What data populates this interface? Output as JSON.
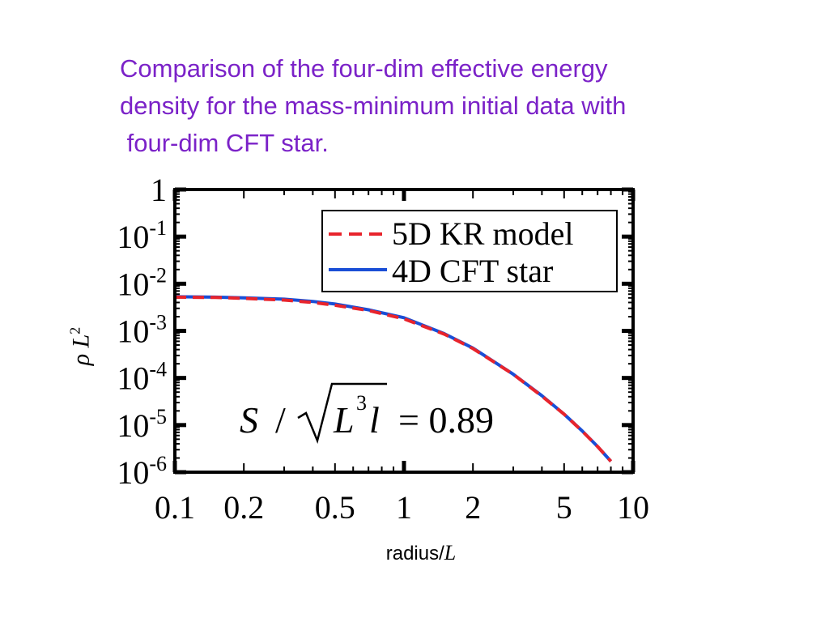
{
  "caption": {
    "line1": "Comparison of the four-dim effective energy",
    "line2": "density for the mass-minimum initial data with",
    "line3": " four-dim CFT star."
  },
  "chart_data": {
    "type": "line",
    "xlabel_prefix": "radius/",
    "xlabel_italic": "L",
    "ylabel_main": "ρ L",
    "ylabel_exp": "2",
    "x_scale": "log",
    "y_scale": "log",
    "xlim": [
      0.1,
      10
    ],
    "ylim": [
      1e-06,
      1
    ],
    "x_ticks": [
      {
        "value": 0.1,
        "label": "0.1"
      },
      {
        "value": 0.2,
        "label": "0.2"
      },
      {
        "value": 0.5,
        "label": "0.5"
      },
      {
        "value": 1,
        "label": "1"
      },
      {
        "value": 2,
        "label": "2"
      },
      {
        "value": 5,
        "label": "5"
      },
      {
        "value": 10,
        "label": "10"
      }
    ],
    "y_ticks": [
      {
        "value": 1,
        "base": "1",
        "exp": ""
      },
      {
        "value": 0.1,
        "base": "10",
        "exp": "-1"
      },
      {
        "value": 0.01,
        "base": "10",
        "exp": "-2"
      },
      {
        "value": 0.001,
        "base": "10",
        "exp": "-3"
      },
      {
        "value": 0.0001,
        "base": "10",
        "exp": "-4"
      },
      {
        "value": 1e-05,
        "base": "10",
        "exp": "-5"
      },
      {
        "value": 1e-06,
        "base": "10",
        "exp": "-6"
      }
    ],
    "legend_position": "top-right",
    "annotation": {
      "S": "S",
      "slash": "/",
      "L": "L",
      "exp": "3",
      "l": "l",
      "equals": "= 0.89"
    },
    "series": [
      {
        "name": "5D KR model",
        "color": "#e8242c",
        "dash": true,
        "points": [
          [
            0.1,
            0.0052
          ],
          [
            0.15,
            0.0051
          ],
          [
            0.2,
            0.0049
          ],
          [
            0.3,
            0.0045
          ],
          [
            0.4,
            0.004
          ],
          [
            0.5,
            0.0035
          ],
          [
            0.7,
            0.0027
          ],
          [
            1,
            0.0018
          ],
          [
            1.5,
            0.00085
          ],
          [
            2,
            0.00042
          ],
          [
            3,
            0.00012
          ],
          [
            4,
            4.1e-05
          ],
          [
            5,
            1.7e-05
          ],
          [
            6,
            7.4e-06
          ],
          [
            7,
            3.5e-06
          ],
          [
            8,
            1.7e-06
          ]
        ]
      },
      {
        "name": "4D CFT star",
        "color": "#1a4ed6",
        "dash": false,
        "points": [
          [
            0.1,
            0.0053
          ],
          [
            0.15,
            0.0052
          ],
          [
            0.2,
            0.005
          ],
          [
            0.3,
            0.0047
          ],
          [
            0.4,
            0.0042
          ],
          [
            0.5,
            0.0037
          ],
          [
            0.7,
            0.0028
          ],
          [
            1,
            0.0019
          ],
          [
            1.5,
            0.00087
          ],
          [
            2,
            0.00043
          ],
          [
            3,
            0.00012
          ],
          [
            4,
            4.2e-05
          ],
          [
            5,
            1.7e-05
          ],
          [
            6,
            7.5e-06
          ],
          [
            7,
            3.5e-06
          ],
          [
            8,
            1.7e-06
          ]
        ]
      }
    ]
  }
}
